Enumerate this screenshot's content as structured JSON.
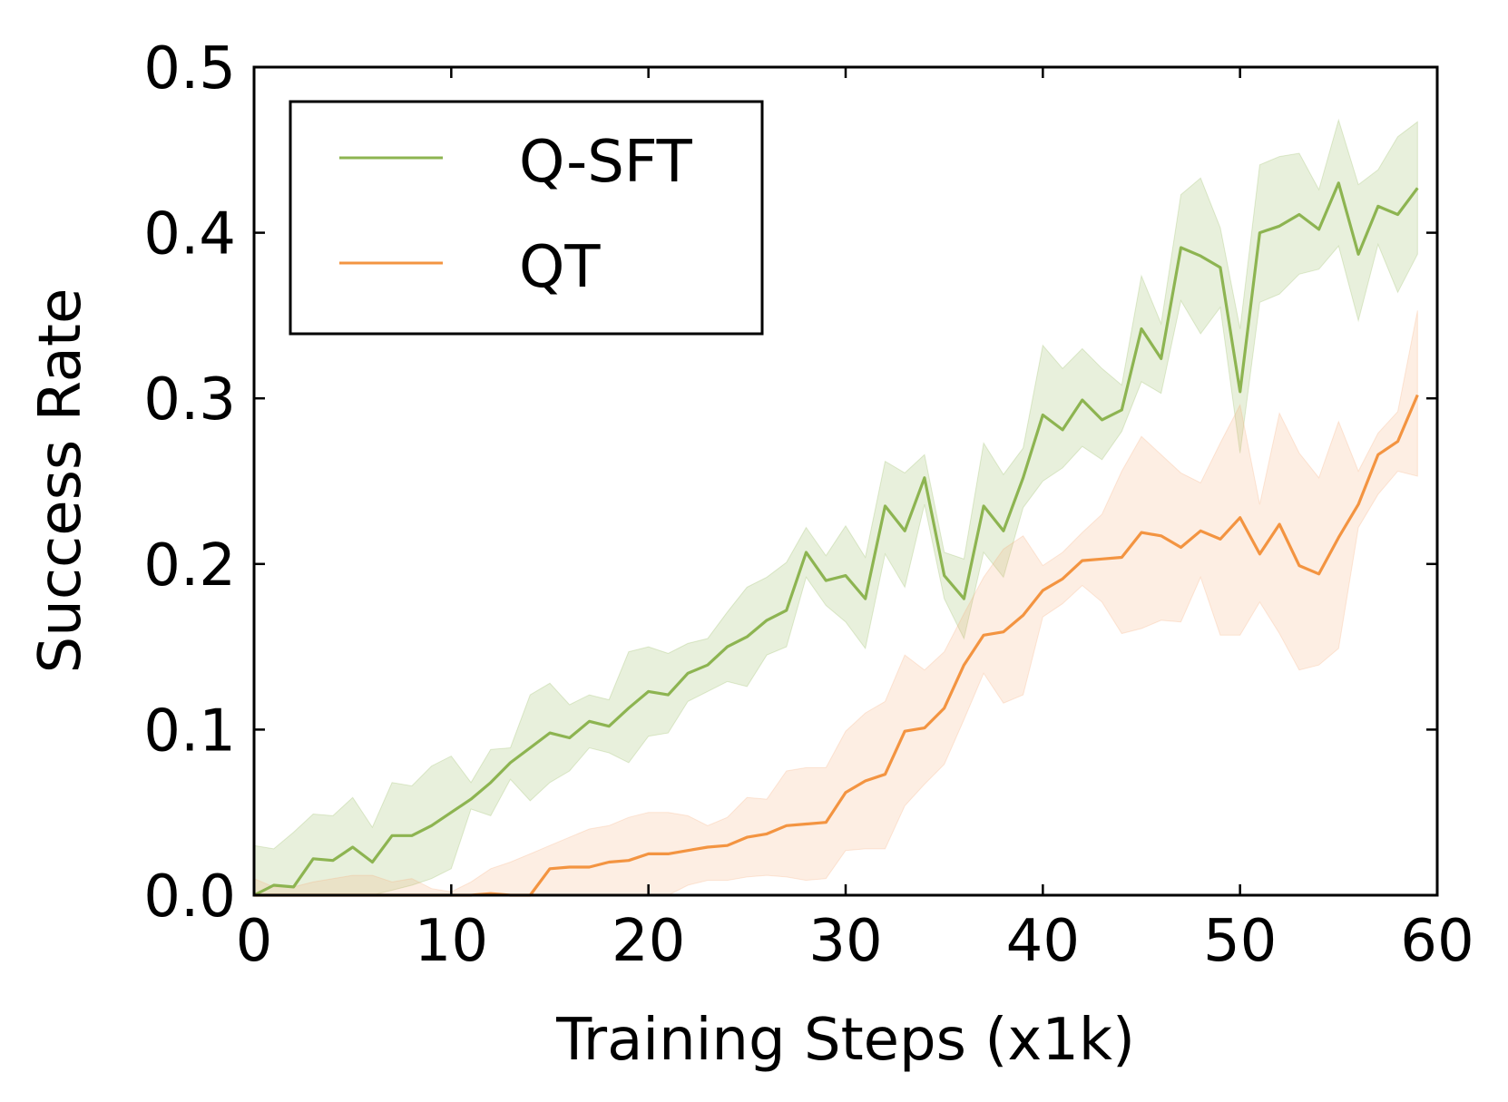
{
  "chart_data": {
    "type": "line",
    "title": "",
    "xlabel": "Training Steps (x1k)",
    "ylabel": "Success Rate",
    "xlim": [
      0,
      60
    ],
    "ylim": [
      0,
      0.5
    ],
    "xticks": [
      0,
      10,
      20,
      30,
      40,
      50,
      60
    ],
    "xtick_labels": [
      "0",
      "10",
      "20",
      "30",
      "40",
      "50",
      "60"
    ],
    "yticks": [
      0.0,
      0.1,
      0.2,
      0.3,
      0.4,
      0.5
    ],
    "ytick_labels": [
      "0.0",
      "0.1",
      "0.2",
      "0.3",
      "0.4",
      "0.5"
    ],
    "grid": false,
    "legend_position": "top-left",
    "x": [
      0,
      1,
      2,
      3,
      4,
      5,
      6,
      7,
      8,
      9,
      10,
      11,
      12,
      13,
      14,
      15,
      16,
      17,
      18,
      19,
      20,
      21,
      22,
      23,
      24,
      25,
      26,
      27,
      28,
      29,
      30,
      31,
      32,
      33,
      34,
      35,
      36,
      37,
      38,
      39,
      40,
      41,
      42,
      43,
      44,
      45,
      46,
      47,
      48,
      49,
      50,
      51,
      52,
      53,
      54,
      55,
      56,
      57,
      58,
      59
    ],
    "series": [
      {
        "name": "Q-SFT",
        "color": "#8db451",
        "band_color": "#8db451",
        "values": [
          0.0,
          0.006,
          0.005,
          0.022,
          0.021,
          0.029,
          0.02,
          0.036,
          0.036,
          0.042,
          0.05,
          0.058,
          0.068,
          0.08,
          0.089,
          0.098,
          0.095,
          0.105,
          0.102,
          0.113,
          0.123,
          0.121,
          0.134,
          0.139,
          0.15,
          0.156,
          0.166,
          0.172,
          0.207,
          0.19,
          0.193,
          0.179,
          0.235,
          0.22,
          0.252,
          0.193,
          0.179,
          0.235,
          0.22,
          0.252,
          0.29,
          0.281,
          0.299,
          0.287,
          0.293,
          0.342,
          0.324,
          0.391,
          0.386,
          0.379,
          0.304,
          0.4,
          0.404,
          0.411,
          0.402,
          0.43,
          0.387,
          0.416,
          0.411,
          0.427
        ],
        "upper": [
          0.03,
          0.028,
          0.038,
          0.049,
          0.048,
          0.059,
          0.041,
          0.068,
          0.066,
          0.078,
          0.084,
          0.068,
          0.088,
          0.089,
          0.121,
          0.128,
          0.115,
          0.121,
          0.118,
          0.147,
          0.15,
          0.146,
          0.152,
          0.155,
          0.171,
          0.186,
          0.192,
          0.201,
          0.222,
          0.205,
          0.223,
          0.204,
          0.262,
          0.255,
          0.266,
          0.207,
          0.203,
          0.273,
          0.254,
          0.27,
          0.332,
          0.318,
          0.33,
          0.318,
          0.308,
          0.374,
          0.345,
          0.423,
          0.433,
          0.403,
          0.342,
          0.441,
          0.446,
          0.448,
          0.426,
          0.468,
          0.429,
          0.438,
          0.458,
          0.467
        ],
        "lower": [
          0.0,
          0.0,
          0.0,
          0.0,
          0.0,
          0.0,
          0.0,
          0.003,
          0.006,
          0.01,
          0.016,
          0.052,
          0.048,
          0.07,
          0.057,
          0.068,
          0.075,
          0.089,
          0.086,
          0.08,
          0.096,
          0.098,
          0.117,
          0.123,
          0.129,
          0.126,
          0.145,
          0.15,
          0.192,
          0.175,
          0.165,
          0.149,
          0.206,
          0.186,
          0.236,
          0.179,
          0.155,
          0.207,
          0.192,
          0.234,
          0.25,
          0.258,
          0.271,
          0.263,
          0.28,
          0.31,
          0.303,
          0.359,
          0.339,
          0.355,
          0.267,
          0.358,
          0.363,
          0.375,
          0.378,
          0.392,
          0.347,
          0.393,
          0.364,
          0.387
        ]
      },
      {
        "name": "QT",
        "color": "#f39441",
        "band_color": "#f7a875",
        "values": [
          0.0,
          0.0,
          0.0,
          0.0,
          0.0,
          0.0,
          0.0,
          0.0,
          0.0,
          0.0,
          0.0,
          0.0,
          0.001,
          0.0,
          0.0,
          0.016,
          0.017,
          0.017,
          0.02,
          0.021,
          0.025,
          0.025,
          0.027,
          0.029,
          0.03,
          0.035,
          0.037,
          0.042,
          0.043,
          0.044,
          0.062,
          0.069,
          0.073,
          0.099,
          0.101,
          0.113,
          0.139,
          0.157,
          0.159,
          0.169,
          0.184,
          0.191,
          0.202,
          0.203,
          0.204,
          0.219,
          0.217,
          0.21,
          0.22,
          0.215,
          0.228,
          0.206,
          0.224,
          0.199,
          0.194,
          0.216,
          0.236,
          0.266,
          0.274,
          0.302
        ],
        "upper": [
          0.01,
          0.005,
          0.005,
          0.008,
          0.01,
          0.012,
          0.012,
          0.008,
          0.01,
          0.004,
          0.002,
          0.008,
          0.016,
          0.02,
          0.025,
          0.03,
          0.035,
          0.04,
          0.042,
          0.047,
          0.05,
          0.05,
          0.048,
          0.042,
          0.047,
          0.059,
          0.058,
          0.075,
          0.077,
          0.077,
          0.099,
          0.11,
          0.117,
          0.145,
          0.136,
          0.147,
          0.17,
          0.192,
          0.209,
          0.217,
          0.199,
          0.207,
          0.219,
          0.23,
          0.256,
          0.277,
          0.266,
          0.255,
          0.249,
          0.273,
          0.296,
          0.236,
          0.291,
          0.267,
          0.252,
          0.286,
          0.256,
          0.279,
          0.292,
          0.353
        ],
        "lower": [
          0.0,
          0.0,
          0.0,
          0.0,
          0.0,
          0.0,
          0.0,
          0.0,
          0.0,
          0.0,
          0.0,
          0.0,
          0.0,
          0.0,
          0.0,
          0.0,
          0.0,
          0.0,
          0.0,
          0.0,
          0.0,
          0.0,
          0.006,
          0.009,
          0.009,
          0.011,
          0.012,
          0.011,
          0.009,
          0.01,
          0.027,
          0.028,
          0.028,
          0.054,
          0.067,
          0.079,
          0.106,
          0.134,
          0.116,
          0.121,
          0.168,
          0.176,
          0.187,
          0.177,
          0.158,
          0.161,
          0.166,
          0.165,
          0.192,
          0.157,
          0.157,
          0.177,
          0.158,
          0.136,
          0.139,
          0.149,
          0.222,
          0.242,
          0.256,
          0.253
        ]
      }
    ]
  }
}
